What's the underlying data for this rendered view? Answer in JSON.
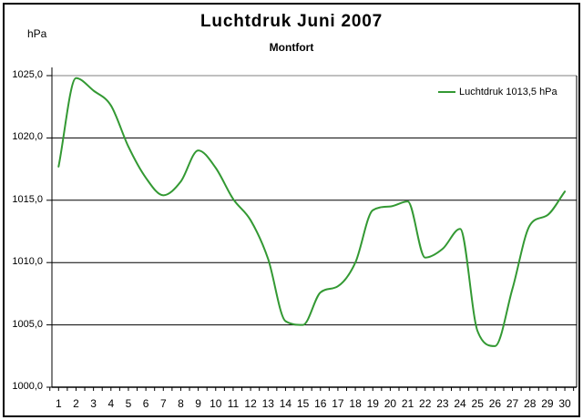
{
  "frame": {
    "border_color": "#000000",
    "background": "#ffffff"
  },
  "header": {
    "title": "Luchtdruk Juni 2007",
    "subtitle": "Montfort",
    "unit_label": "hPa"
  },
  "legend": {
    "label": "Luchtdruk 1013,5 hPa",
    "line_color": "#339933"
  },
  "chart_data": {
    "type": "line",
    "title": "Luchtdruk Juni 2007",
    "subtitle": "Montfort",
    "ylabel": "hPa",
    "xlabel": "",
    "ylim": [
      1000,
      1025
    ],
    "grid": "horizontal",
    "smooth": true,
    "legend_position": "top-right",
    "x": [
      1,
      2,
      3,
      4,
      5,
      6,
      7,
      8,
      9,
      10,
      11,
      12,
      13,
      14,
      15,
      16,
      17,
      18,
      19,
      20,
      21,
      22,
      23,
      24,
      25,
      26,
      27,
      28,
      29,
      30
    ],
    "x_tick_labels": [
      "1",
      "2",
      "3",
      "4",
      "5",
      "6",
      "7",
      "8",
      "9",
      "10",
      "11",
      "12",
      "13",
      "14",
      "15",
      "16",
      "17",
      "18",
      "19",
      "20",
      "21",
      "22",
      "23",
      "24",
      "25",
      "26",
      "27",
      "28",
      "29",
      "30"
    ],
    "y_tick_labels": [
      "1025,0",
      "1020,0",
      "1015,0",
      "1010,0",
      "1005,0",
      "1000,0"
    ],
    "y_tick_values": [
      1025,
      1020,
      1015,
      1010,
      1005,
      1000
    ],
    "series": [
      {
        "name": "Luchtdruk 1013,5 hPa",
        "color": "#339933",
        "values": [
          1017.7,
          1024.8,
          1023.8,
          1022.6,
          1019.3,
          1016.8,
          1015.4,
          1016.5,
          1019.0,
          1017.6,
          1015.1,
          1013.4,
          1010.3,
          1005.3,
          1005.0,
          1007.6,
          1008.1,
          1010.0,
          1014.2,
          1014.5,
          1014.9,
          1010.4,
          1011.1,
          1012.7,
          1004.5,
          1003.3,
          1007.9,
          1013.0,
          1013.8,
          1015.7
        ]
      }
    ],
    "colors": {
      "line": "#339933",
      "gridline": "#000000",
      "top_gridline": "#808080",
      "axis": "#000000",
      "text": "#000000"
    }
  }
}
